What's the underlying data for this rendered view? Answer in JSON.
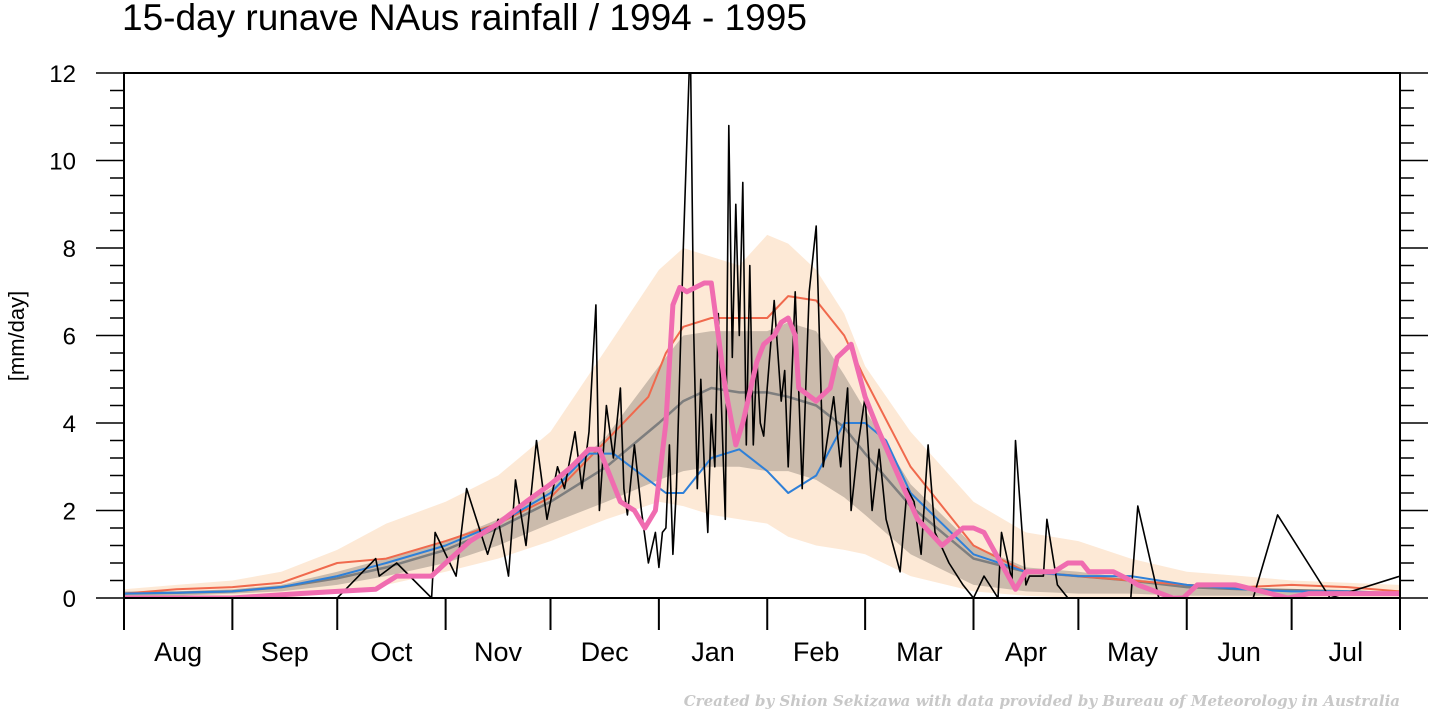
{
  "chart_data": {
    "type": "line",
    "title": "15-day runave NAus rainfall  /  1994 - 1995",
    "ylabel": "[mm/day]",
    "xlabel": "",
    "ylim": [
      0,
      12
    ],
    "yticks": [
      0,
      2,
      4,
      6,
      8,
      10,
      12
    ],
    "xlim": [
      0,
      365
    ],
    "x_unit": "days from 1 Aug 1994",
    "months": [
      {
        "label": "Aug",
        "start": 0,
        "end": 31
      },
      {
        "label": "Sep",
        "start": 31,
        "end": 61
      },
      {
        "label": "Oct",
        "start": 61,
        "end": 92
      },
      {
        "label": "Nov",
        "start": 92,
        "end": 122
      },
      {
        "label": "Dec",
        "start": 122,
        "end": 153
      },
      {
        "label": "Jan",
        "start": 153,
        "end": 184
      },
      {
        "label": "Feb",
        "start": 184,
        "end": 212
      },
      {
        "label": "Mar",
        "start": 212,
        "end": 243
      },
      {
        "label": "Apr",
        "start": 243,
        "end": 273
      },
      {
        "label": "May",
        "start": 273,
        "end": 304
      },
      {
        "label": "Jun",
        "start": 304,
        "end": 334
      },
      {
        "label": "Jul",
        "start": 334,
        "end": 365
      }
    ],
    "grid": false,
    "legend": "none",
    "bands": [
      {
        "name": "outer range",
        "color": "#fde9d6",
        "x": [
          0,
          15,
          31,
          45,
          61,
          75,
          92,
          107,
          122,
          138,
          153,
          160,
          168,
          176,
          184,
          190,
          198,
          206,
          212,
          225,
          243,
          258,
          273,
          288,
          304,
          320,
          334,
          350,
          365
        ],
        "low": [
          0,
          0,
          0,
          0,
          0.1,
          0.3,
          0.6,
          0.9,
          1.3,
          1.8,
          2.2,
          2.1,
          1.9,
          1.8,
          1.7,
          1.4,
          1.2,
          1.1,
          1.0,
          0.5,
          0.15,
          0.05,
          0.0,
          0.0,
          0.0,
          0.0,
          0.0,
          0.0,
          0.0
        ],
        "high": [
          0.2,
          0.3,
          0.4,
          0.6,
          1.1,
          1.7,
          2.2,
          2.8,
          3.8,
          5.7,
          7.5,
          8.0,
          7.8,
          7.6,
          8.3,
          8.1,
          7.5,
          6.5,
          5.3,
          3.8,
          2.2,
          1.5,
          1.3,
          0.9,
          0.6,
          0.5,
          0.4,
          0.35,
          0.3
        ]
      },
      {
        "name": "inner range",
        "color": "#cbbbac",
        "x": [
          0,
          15,
          31,
          45,
          61,
          75,
          92,
          107,
          122,
          138,
          153,
          160,
          168,
          176,
          184,
          190,
          198,
          206,
          212,
          225,
          243,
          258,
          273,
          288,
          304,
          320,
          334,
          350,
          365
        ],
        "low": [
          0.05,
          0.05,
          0.1,
          0.15,
          0.3,
          0.5,
          0.8,
          1.2,
          1.7,
          2.2,
          2.7,
          2.9,
          3.0,
          3.0,
          2.9,
          2.9,
          2.7,
          2.3,
          1.9,
          1.0,
          0.3,
          0.15,
          0.1,
          0.1,
          0.05,
          0.05,
          0.05,
          0.05,
          0.05
        ],
        "high": [
          0.15,
          0.15,
          0.2,
          0.3,
          0.6,
          0.9,
          1.3,
          1.8,
          2.5,
          3.7,
          5.3,
          6.0,
          6.1,
          6.1,
          6.1,
          6.3,
          6.1,
          5.1,
          4.3,
          2.6,
          1.2,
          0.7,
          0.6,
          0.45,
          0.3,
          0.25,
          0.2,
          0.15,
          0.15
        ]
      }
    ],
    "series": [
      {
        "color": "#7e7e7e",
        "width": 2.5,
        "x": [
          0,
          15,
          31,
          45,
          61,
          75,
          92,
          107,
          122,
          138,
          153,
          160,
          168,
          176,
          184,
          190,
          198,
          206,
          212,
          225,
          243,
          258,
          273,
          288,
          304,
          320,
          334,
          350,
          365
        ],
        "y": [
          0.1,
          0.12,
          0.15,
          0.25,
          0.45,
          0.7,
          1.1,
          1.6,
          2.2,
          3.0,
          4.0,
          4.5,
          4.8,
          4.7,
          4.7,
          4.6,
          4.4,
          3.9,
          3.3,
          2.1,
          0.9,
          0.6,
          0.5,
          0.4,
          0.25,
          0.2,
          0.18,
          0.15,
          0.1
        ]
      },
      {
        "color": "#f0694d",
        "width": 2,
        "x": [
          0,
          15,
          31,
          45,
          61,
          75,
          92,
          107,
          122,
          138,
          150,
          155,
          160,
          168,
          176,
          184,
          190,
          198,
          206,
          212,
          225,
          243,
          258,
          273,
          288,
          304,
          320,
          334,
          350,
          365
        ],
        "y": [
          0.1,
          0.2,
          0.25,
          0.35,
          0.8,
          0.9,
          1.3,
          1.7,
          2.3,
          3.6,
          4.6,
          5.6,
          6.2,
          6.4,
          6.4,
          6.4,
          6.9,
          6.8,
          6.0,
          5.0,
          3.0,
          1.2,
          0.6,
          0.5,
          0.4,
          0.3,
          0.25,
          0.3,
          0.25,
          0.15
        ]
      },
      {
        "color": "#2f80d8",
        "width": 2,
        "x": [
          0,
          15,
          31,
          45,
          61,
          75,
          92,
          107,
          122,
          133,
          140,
          150,
          155,
          160,
          168,
          176,
          184,
          190,
          198,
          206,
          212,
          218,
          225,
          243,
          258,
          273,
          288,
          304,
          320,
          334,
          350,
          365
        ],
        "y": [
          0.1,
          0.12,
          0.15,
          0.25,
          0.5,
          0.8,
          1.2,
          1.7,
          2.4,
          3.3,
          3.3,
          2.7,
          2.4,
          2.4,
          3.2,
          3.4,
          2.9,
          2.4,
          2.8,
          4.0,
          4.0,
          3.6,
          2.4,
          1.0,
          0.6,
          0.5,
          0.5,
          0.3,
          0.2,
          0.15,
          0.15,
          0.1
        ]
      },
      {
        "color": "#000000",
        "width": 1.6,
        "x": [
          0,
          31,
          61,
          72,
          73,
          78,
          88,
          89,
          95,
          98,
          104,
          107,
          110,
          112,
          115,
          118,
          121,
          124,
          126,
          129,
          131,
          133,
          135,
          136,
          138,
          140,
          142,
          143,
          144,
          146,
          148,
          150,
          152,
          153,
          154,
          155,
          156,
          157,
          158,
          160,
          162,
          163,
          164,
          165,
          166,
          167,
          168,
          169,
          170,
          172,
          173,
          174,
          175,
          176,
          177,
          178,
          179,
          180,
          181,
          182,
          183,
          184,
          186,
          188,
          189,
          190,
          192,
          194,
          196,
          198,
          200,
          203,
          205,
          207,
          208,
          210,
          212,
          214,
          216,
          218,
          220,
          222,
          224,
          226,
          228,
          230,
          232,
          236,
          240,
          243,
          246,
          250,
          251,
          254,
          255,
          258,
          259,
          263,
          264,
          267,
          270,
          280,
          288,
          290,
          296,
          302,
          323,
          330,
          345,
          365
        ],
        "y": [
          0,
          0,
          0,
          0.9,
          0.5,
          0.8,
          0,
          1.5,
          0.5,
          2.5,
          1.0,
          1.8,
          0.5,
          2.7,
          1.2,
          3.6,
          1.8,
          3.0,
          2.5,
          3.8,
          2.5,
          3.8,
          6.7,
          2.0,
          4.4,
          3.2,
          4.8,
          2.5,
          1.9,
          3.5,
          2.0,
          0.8,
          1.5,
          0.7,
          1.5,
          1.6,
          3.5,
          1.0,
          2.5,
          8.0,
          12.8,
          6.0,
          2.5,
          5.0,
          3.0,
          1.5,
          4.2,
          3.0,
          6.5,
          1.8,
          10.8,
          5.5,
          9.0,
          6.0,
          9.5,
          3.5,
          7.6,
          3.5,
          5.5,
          4.0,
          3.7,
          4.8,
          6.8,
          4.5,
          5.2,
          3.0,
          7.0,
          2.5,
          7.0,
          8.5,
          3.0,
          4.6,
          3.0,
          4.8,
          2.0,
          3.5,
          4.6,
          2.0,
          3.4,
          1.8,
          1.2,
          0.6,
          2.5,
          2.2,
          1.0,
          3.5,
          1.5,
          0.8,
          0.3,
          0,
          0.5,
          0,
          1.5,
          0.4,
          3.6,
          0.3,
          0.5,
          0.5,
          1.8,
          0.3,
          0,
          0,
          0,
          2.1,
          0,
          0,
          0,
          1.9,
          0,
          0.5
        ]
      },
      {
        "color": "#f06cb0",
        "width": 5,
        "x": [
          0,
          31,
          50,
          61,
          72,
          78,
          88,
          92,
          99,
          107,
          115,
          122,
          128,
          133,
          136,
          138,
          142,
          146,
          149,
          152,
          155,
          157,
          159,
          161,
          166,
          168,
          170,
          172,
          175,
          177,
          181,
          183,
          186,
          188,
          190,
          192,
          193,
          198,
          202,
          204,
          208,
          212,
          216,
          222,
          227,
          234,
          240,
          243,
          246,
          255,
          258,
          262,
          266,
          270,
          272,
          274,
          276,
          278,
          283,
          288,
          290,
          300,
          303,
          307,
          312,
          318,
          333,
          339,
          345,
          350,
          365
        ],
        "y": [
          0,
          0,
          0.1,
          0.15,
          0.2,
          0.5,
          0.5,
          0.8,
          1.3,
          1.7,
          2.2,
          2.6,
          3.0,
          3.4,
          3.4,
          3.0,
          2.2,
          2.0,
          1.6,
          2.0,
          4.0,
          6.7,
          7.1,
          7.0,
          7.2,
          7.2,
          6.0,
          4.8,
          3.5,
          4.0,
          5.4,
          5.8,
          6.0,
          6.3,
          6.4,
          6.0,
          4.8,
          4.5,
          4.8,
          5.5,
          5.8,
          4.6,
          3.8,
          2.7,
          1.8,
          1.2,
          1.6,
          1.6,
          1.5,
          0.2,
          0.6,
          0.6,
          0.6,
          0.8,
          0.8,
          0.8,
          0.6,
          0.6,
          0.6,
          0.4,
          0.3,
          0.0,
          0.0,
          0.3,
          0.3,
          0.3,
          0.0,
          0.1,
          0.1,
          0.1,
          0.1
        ]
      }
    ]
  },
  "credit": "Created by Shion Sekizawa with data provided by Bureau of Meteorology in Australia"
}
